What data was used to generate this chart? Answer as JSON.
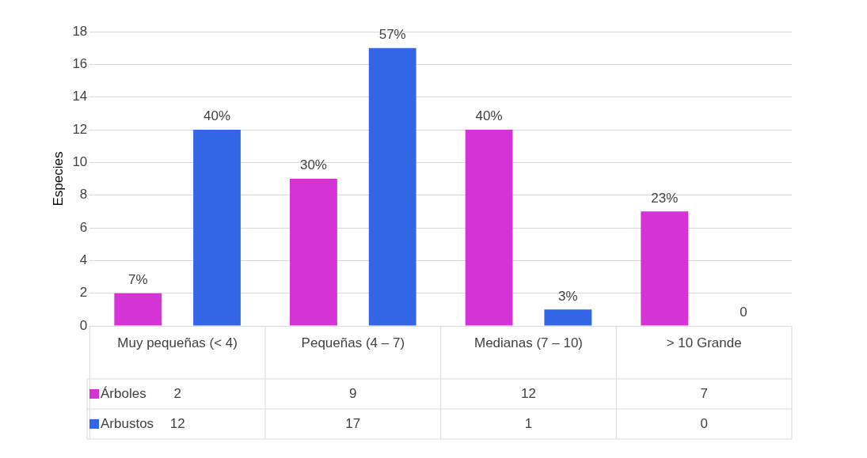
{
  "chart_data": {
    "type": "bar",
    "ylabel": "Especies",
    "categories": [
      "Muy pequeñas (< 4)",
      "Pequeñas (4 – 7)",
      "Medianas (7 – 10)",
      "> 10 Grande"
    ],
    "series": [
      {
        "name": "Árboles",
        "color": "#d633d6",
        "values": [
          2,
          9,
          12,
          7
        ],
        "value_labels": [
          "2",
          "9",
          "12",
          "7"
        ]
      },
      {
        "name": "Arbustos",
        "color": "#3366e6",
        "values": [
          12,
          17,
          1,
          0
        ],
        "value_labels": [
          "12",
          "17",
          "1",
          "0"
        ]
      }
    ],
    "annotations": [
      "7%",
      "40%",
      "30%",
      "57%",
      "40%",
      "3%",
      "23%",
      "0"
    ],
    "ylim": [
      0,
      18
    ],
    "yticks": [
      0,
      2,
      4,
      6,
      8,
      10,
      12,
      14,
      16,
      18
    ],
    "grid": "y",
    "legend": "bottom",
    "data_labels": true
  }
}
